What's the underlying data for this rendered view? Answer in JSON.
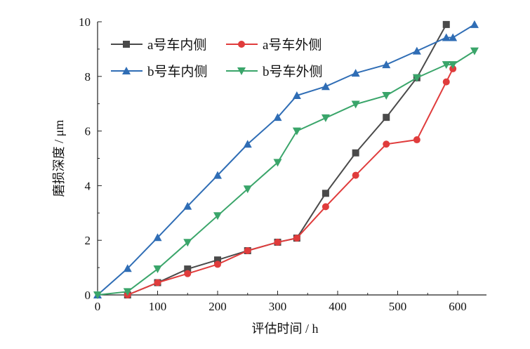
{
  "chart_data": {
    "type": "line",
    "title": "",
    "xlabel": "评估时间 / h",
    "ylabel": "磨损深度 / μm",
    "xlim": [
      0,
      650
    ],
    "ylim": [
      0,
      10
    ],
    "xticks": [
      0,
      100,
      200,
      300,
      400,
      500,
      600
    ],
    "yticks": [
      0,
      2,
      4,
      6,
      8,
      10
    ],
    "grid": false,
    "legend_position": "top-left",
    "series": [
      {
        "name": "a号车内侧",
        "color": "#4a4a4a",
        "marker": "square",
        "x": [
          50,
          100,
          150,
          200,
          250,
          300,
          332,
          380,
          430,
          481,
          532,
          581
        ],
        "y": [
          0,
          0.45,
          0.95,
          1.28,
          1.62,
          1.93,
          2.08,
          3.72,
          5.2,
          6.5,
          7.95,
          9.9
        ]
      },
      {
        "name": "a号车外侧",
        "color": "#e03c3c",
        "marker": "circle",
        "x": [
          50,
          100,
          150,
          200,
          250,
          300,
          332,
          380,
          430,
          481,
          532,
          581,
          592
        ],
        "y": [
          0,
          0.45,
          0.78,
          1.12,
          1.62,
          1.93,
          2.08,
          3.23,
          4.38,
          5.52,
          5.68,
          7.8,
          8.28
        ]
      },
      {
        "name": "b号车内侧",
        "color": "#2f6db5",
        "marker": "triangle-up",
        "x": [
          0,
          50,
          100,
          150,
          200,
          250,
          300,
          332,
          380,
          430,
          481,
          532,
          581,
          592,
          628
        ],
        "y": [
          0,
          0.97,
          2.1,
          3.25,
          4.38,
          5.52,
          6.5,
          7.3,
          7.63,
          8.12,
          8.43,
          8.93,
          9.42,
          9.42,
          9.9
        ]
      },
      {
        "name": "b号车外侧",
        "color": "#3aa56a",
        "marker": "triangle-down",
        "x": [
          0,
          50,
          100,
          150,
          200,
          250,
          300,
          332,
          380,
          430,
          481,
          532,
          581,
          592,
          628
        ],
        "y": [
          0,
          0.12,
          0.95,
          1.92,
          2.9,
          3.88,
          4.85,
          6.0,
          6.48,
          6.98,
          7.3,
          7.95,
          8.43,
          8.43,
          8.93
        ]
      }
    ]
  }
}
